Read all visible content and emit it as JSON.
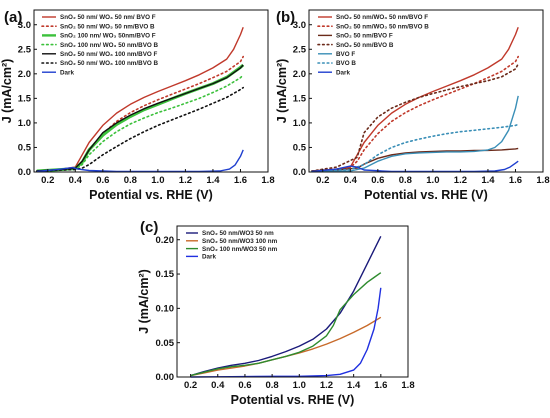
{
  "chart_data": [
    {
      "type": "line",
      "panel_label": "(a)",
      "xlabel": "Potential vs. RHE (V)",
      "ylabel": "J (mA/cm²)",
      "xlim": [
        0.1,
        1.8
      ],
      "ylim": [
        0,
        3.3
      ],
      "xticks": [
        0.2,
        0.4,
        0.6,
        0.8,
        1.0,
        1.2,
        1.4,
        1.6,
        1.8
      ],
      "yticks": [
        0.0,
        0.5,
        1.0,
        1.5,
        2.0,
        2.5,
        3.0
      ],
      "legend_position": "top-left",
      "series": [
        {
          "name": "SnO₂ 50 nm/ WO₃ 50 nm/ BVO F",
          "color": "#c0392b",
          "dash": "solid",
          "x": [
            0.12,
            0.3,
            0.4,
            0.44,
            0.5,
            0.6,
            0.7,
            0.8,
            0.9,
            1.0,
            1.1,
            1.2,
            1.3,
            1.4,
            1.5,
            1.55,
            1.6,
            1.62
          ],
          "y": [
            0.02,
            0.06,
            0.1,
            0.3,
            0.6,
            0.95,
            1.2,
            1.38,
            1.52,
            1.64,
            1.75,
            1.86,
            1.98,
            2.12,
            2.3,
            2.5,
            2.8,
            2.95
          ]
        },
        {
          "name": "SnO₂ 50 nm/ WO₃ 50 nm/BVO B",
          "color": "#c0392b",
          "dash": "dot",
          "x": [
            0.12,
            0.3,
            0.4,
            0.45,
            0.5,
            0.6,
            0.7,
            0.8,
            0.9,
            1.0,
            1.1,
            1.2,
            1.3,
            1.4,
            1.5,
            1.6,
            1.62
          ],
          "y": [
            0.02,
            0.06,
            0.09,
            0.22,
            0.45,
            0.78,
            1.03,
            1.21,
            1.35,
            1.47,
            1.58,
            1.69,
            1.8,
            1.92,
            2.05,
            2.25,
            2.35
          ]
        },
        {
          "name": "SnO₂ 100 nm/ WO₃ 50nm/BVO F",
          "color": "#3cc13c",
          "dash": "solid",
          "width": 3,
          "x": [
            0.12,
            0.3,
            0.4,
            0.45,
            0.5,
            0.6,
            0.7,
            0.8,
            0.9,
            1.0,
            1.1,
            1.2,
            1.3,
            1.4,
            1.5,
            1.55,
            1.6,
            1.62
          ],
          "y": [
            0.02,
            0.05,
            0.07,
            0.2,
            0.45,
            0.75,
            0.97,
            1.13,
            1.27,
            1.38,
            1.49,
            1.6,
            1.7,
            1.8,
            1.93,
            2.03,
            2.13,
            2.18
          ]
        },
        {
          "name": "SnO₂ 100 nm/ WO₃ 50 nm/BVO B",
          "color": "#3cc13c",
          "dash": "dot",
          "x": [
            0.12,
            0.3,
            0.4,
            0.45,
            0.5,
            0.6,
            0.7,
            0.8,
            0.9,
            1.0,
            1.1,
            1.2,
            1.3,
            1.4,
            1.5,
            1.6,
            1.62
          ],
          "y": [
            0.02,
            0.05,
            0.06,
            0.15,
            0.35,
            0.62,
            0.82,
            0.98,
            1.1,
            1.21,
            1.3,
            1.4,
            1.5,
            1.62,
            1.75,
            1.92,
            1.98
          ]
        },
        {
          "name": "SnO₂ 50 nm/ WO₃ 100 nm/BVO F",
          "color": "#111111",
          "dash": "solid",
          "x": [
            0.12,
            0.3,
            0.4,
            0.45,
            0.5,
            0.6,
            0.7,
            0.8,
            0.9,
            1.0,
            1.1,
            1.2,
            1.3,
            1.4,
            1.5,
            1.55,
            1.6,
            1.62
          ],
          "y": [
            0.02,
            0.05,
            0.08,
            0.22,
            0.45,
            0.8,
            1.0,
            1.16,
            1.29,
            1.4,
            1.5,
            1.6,
            1.7,
            1.8,
            1.92,
            2.02,
            2.12,
            2.18
          ]
        },
        {
          "name": "SnO₂ 50 nm/ WO₃ 100 nm/BVO B",
          "color": "#111111",
          "dash": "dot",
          "x": [
            0.12,
            0.3,
            0.4,
            0.45,
            0.5,
            0.6,
            0.7,
            0.8,
            0.9,
            1.0,
            1.1,
            1.2,
            1.3,
            1.4,
            1.5,
            1.6,
            1.62
          ],
          "y": [
            0.02,
            0.04,
            0.05,
            0.08,
            0.15,
            0.35,
            0.52,
            0.68,
            0.82,
            0.95,
            1.06,
            1.17,
            1.28,
            1.4,
            1.52,
            1.68,
            1.72
          ]
        },
        {
          "name": "Dark",
          "color": "#1f3fcf",
          "dash": "solid",
          "x": [
            0.12,
            0.3,
            0.38,
            0.42,
            0.5,
            0.7,
            1.0,
            1.3,
            1.45,
            1.52,
            1.56,
            1.6,
            1.62
          ],
          "y": [
            0.01,
            0.06,
            0.09,
            0.06,
            0.03,
            0.01,
            0.01,
            0.01,
            0.02,
            0.06,
            0.14,
            0.32,
            0.45
          ]
        }
      ]
    },
    {
      "type": "line",
      "panel_label": "(b)",
      "xlabel": "Potential vs. RHE (V)",
      "ylabel": "J (mA/cm²)",
      "xlim": [
        0.1,
        1.8
      ],
      "ylim": [
        0,
        3.3
      ],
      "xticks": [
        0.2,
        0.4,
        0.6,
        0.8,
        1.0,
        1.2,
        1.4,
        1.6,
        1.8
      ],
      "yticks": [
        0.0,
        0.5,
        1.0,
        1.5,
        2.0,
        2.5,
        3.0
      ],
      "legend_position": "top-left",
      "series": [
        {
          "name": "SnO₂ 50 nm/WO₃ 50 nm/BVO F",
          "color": "#c0392b",
          "dash": "solid",
          "x": [
            0.12,
            0.3,
            0.4,
            0.44,
            0.5,
            0.6,
            0.7,
            0.8,
            0.9,
            1.0,
            1.1,
            1.2,
            1.3,
            1.4,
            1.5,
            1.55,
            1.6,
            1.62
          ],
          "y": [
            0.02,
            0.06,
            0.1,
            0.3,
            0.6,
            0.95,
            1.2,
            1.38,
            1.52,
            1.64,
            1.75,
            1.86,
            1.98,
            2.12,
            2.3,
            2.5,
            2.8,
            2.95
          ]
        },
        {
          "name": "SnO₂ 50 nm/WO₃ 50 nm/BVO B",
          "color": "#c0392b",
          "dash": "dot",
          "x": [
            0.12,
            0.3,
            0.4,
            0.45,
            0.5,
            0.6,
            0.7,
            0.8,
            0.9,
            1.0,
            1.1,
            1.2,
            1.3,
            1.4,
            1.5,
            1.6,
            1.62
          ],
          "y": [
            0.02,
            0.06,
            0.09,
            0.22,
            0.45,
            0.78,
            1.03,
            1.21,
            1.35,
            1.47,
            1.58,
            1.69,
            1.8,
            1.92,
            2.05,
            2.25,
            2.35
          ]
        },
        {
          "name": "SnO₂ 50 nm/BVO F",
          "color": "#6b2a1a",
          "dash": "solid",
          "x": [
            0.12,
            0.3,
            0.45,
            0.5,
            0.6,
            0.7,
            0.8,
            0.9,
            1.0,
            1.1,
            1.2,
            1.3,
            1.4,
            1.5,
            1.6,
            1.62
          ],
          "y": [
            0.02,
            0.04,
            0.08,
            0.16,
            0.28,
            0.35,
            0.39,
            0.41,
            0.42,
            0.43,
            0.43,
            0.44,
            0.44,
            0.45,
            0.47,
            0.48
          ]
        },
        {
          "name": "SnO₂ 50 nm/BVO B",
          "color": "#6b2a1a",
          "dash": "dot",
          "x": [
            0.12,
            0.3,
            0.45,
            0.5,
            0.6,
            0.7,
            0.8,
            0.9,
            1.0,
            1.1,
            1.2,
            1.3,
            1.4,
            1.5,
            1.6,
            1.62
          ],
          "y": [
            0.02,
            0.1,
            0.3,
            0.8,
            1.12,
            1.3,
            1.42,
            1.52,
            1.6,
            1.67,
            1.74,
            1.8,
            1.86,
            1.94,
            2.1,
            2.2
          ]
        },
        {
          "name": "BVO F",
          "color": "#3a8fb7",
          "dash": "solid",
          "x": [
            0.12,
            0.4,
            0.5,
            0.6,
            0.7,
            0.8,
            0.9,
            1.0,
            1.1,
            1.2,
            1.3,
            1.4,
            1.45,
            1.5,
            1.55,
            1.6,
            1.62
          ],
          "y": [
            0.01,
            0.02,
            0.08,
            0.22,
            0.32,
            0.37,
            0.39,
            0.4,
            0.41,
            0.41,
            0.42,
            0.45,
            0.5,
            0.62,
            0.85,
            1.3,
            1.55
          ]
        },
        {
          "name": "BVO B",
          "color": "#3a8fb7",
          "dash": "dot",
          "x": [
            0.12,
            0.4,
            0.5,
            0.6,
            0.7,
            0.8,
            0.9,
            1.0,
            1.1,
            1.2,
            1.3,
            1.4,
            1.5,
            1.6,
            1.62
          ],
          "y": [
            0.01,
            0.05,
            0.15,
            0.35,
            0.5,
            0.6,
            0.67,
            0.73,
            0.78,
            0.82,
            0.85,
            0.88,
            0.91,
            0.95,
            0.97
          ]
        },
        {
          "name": "Dark",
          "color": "#1f3fcf",
          "dash": "solid",
          "x": [
            0.12,
            0.3,
            0.4,
            0.45,
            0.5,
            0.7,
            1.0,
            1.3,
            1.45,
            1.52,
            1.56,
            1.6,
            1.62
          ],
          "y": [
            0.01,
            0.06,
            0.12,
            0.1,
            0.04,
            0.01,
            0.01,
            0.01,
            0.02,
            0.05,
            0.1,
            0.18,
            0.22
          ]
        }
      ]
    },
    {
      "type": "line",
      "panel_label": "(c)",
      "xlabel": "Potential vs. RHE (V)",
      "ylabel": "J (mA/cm²)",
      "xlim": [
        0.1,
        1.8
      ],
      "ylim": [
        0,
        0.22
      ],
      "xticks": [
        0.2,
        0.4,
        0.6,
        0.8,
        1.0,
        1.2,
        1.4,
        1.6,
        1.8
      ],
      "yticks": [
        0.0,
        0.05,
        0.1,
        0.15,
        0.2
      ],
      "legend_position": "top-left",
      "series": [
        {
          "name": "SnO₂ 50 nm/WO3 50 nm",
          "color": "#1a1a7a",
          "dash": "solid",
          "x": [
            0.2,
            0.3,
            0.4,
            0.5,
            0.6,
            0.7,
            0.8,
            0.9,
            1.0,
            1.1,
            1.2,
            1.3,
            1.4,
            1.5,
            1.6
          ],
          "y": [
            0.002,
            0.008,
            0.013,
            0.017,
            0.02,
            0.024,
            0.03,
            0.037,
            0.045,
            0.055,
            0.07,
            0.093,
            0.125,
            0.165,
            0.205
          ]
        },
        {
          "name": "SnO₂ 50 nm/WO3 100 nm",
          "color": "#c86a2a",
          "dash": "solid",
          "x": [
            0.2,
            0.3,
            0.4,
            0.5,
            0.6,
            0.7,
            0.8,
            0.9,
            1.0,
            1.1,
            1.2,
            1.3,
            1.4,
            1.5,
            1.6
          ],
          "y": [
            0.002,
            0.006,
            0.01,
            0.013,
            0.016,
            0.02,
            0.025,
            0.03,
            0.035,
            0.041,
            0.048,
            0.056,
            0.065,
            0.075,
            0.087
          ]
        },
        {
          "name": "SnO₂ 100 nm/WO3 50 nm",
          "color": "#2e8b2e",
          "dash": "solid",
          "x": [
            0.2,
            0.3,
            0.4,
            0.5,
            0.6,
            0.7,
            0.8,
            0.9,
            1.0,
            1.1,
            1.2,
            1.25,
            1.3,
            1.4,
            1.5,
            1.55,
            1.6
          ],
          "y": [
            0.002,
            0.007,
            0.012,
            0.015,
            0.017,
            0.02,
            0.025,
            0.03,
            0.036,
            0.045,
            0.06,
            0.075,
            0.098,
            0.12,
            0.138,
            0.145,
            0.152
          ]
        },
        {
          "name": "Dark",
          "color": "#2030e0",
          "dash": "solid",
          "x": [
            0.2,
            0.5,
            0.8,
            1.0,
            1.2,
            1.3,
            1.4,
            1.45,
            1.5,
            1.55,
            1.58,
            1.6
          ],
          "y": [
            0.0,
            0.0005,
            0.001,
            0.001,
            0.002,
            0.004,
            0.01,
            0.02,
            0.04,
            0.07,
            0.1,
            0.13
          ]
        }
      ]
    }
  ]
}
